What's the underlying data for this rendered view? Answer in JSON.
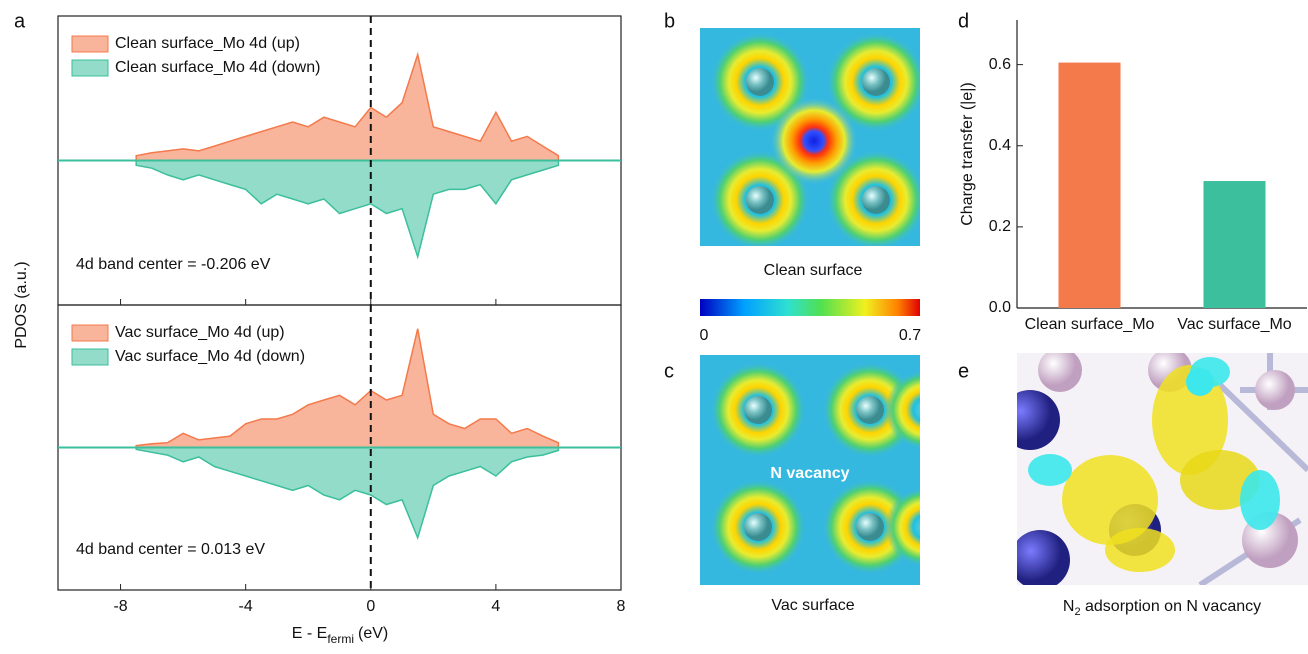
{
  "chart_data": [
    {
      "type": "area",
      "x": [
        -7.5,
        -7,
        -6.5,
        -6,
        -5.5,
        -5,
        -4.5,
        -4,
        -3.5,
        -3,
        -2.5,
        -2,
        -1.5,
        -1,
        -0.5,
        0,
        0.5,
        1,
        1.5,
        2,
        2.5,
        3,
        3.5,
        4,
        4.5,
        5,
        5.5,
        6
      ],
      "series": [
        {
          "name": "Clean surface_Mo 4d (up)",
          "color": "#f4794b",
          "values": [
            0.05,
            0.08,
            0.1,
            0.12,
            0.1,
            0.15,
            0.2,
            0.25,
            0.3,
            0.35,
            0.4,
            0.35,
            0.45,
            0.4,
            0.35,
            0.55,
            0.45,
            0.6,
            1.1,
            0.35,
            0.3,
            0.25,
            0.2,
            0.5,
            0.2,
            0.25,
            0.15,
            0.05
          ]
        },
        {
          "name": "Clean surface_Mo 4d (down)",
          "color": "#3bbf9c",
          "values": [
            -0.05,
            -0.08,
            -0.15,
            -0.2,
            -0.15,
            -0.2,
            -0.25,
            -0.3,
            -0.45,
            -0.35,
            -0.4,
            -0.45,
            -0.4,
            -0.55,
            -0.5,
            -0.45,
            -0.55,
            -0.5,
            -1.0,
            -0.35,
            -0.3,
            -0.3,
            -0.25,
            -0.45,
            -0.2,
            -0.15,
            -0.1,
            -0.05
          ]
        }
      ],
      "xlim": [
        -10,
        8
      ],
      "ylim": [
        -1.5,
        1.5
      ],
      "vline": 0,
      "annotation": "4d band center = -0.206 eV",
      "y_label": "PDOS (a.u.)"
    },
    {
      "type": "area",
      "x": [
        -7.5,
        -7,
        -6.5,
        -6,
        -5.5,
        -5,
        -4.5,
        -4,
        -3.5,
        -3,
        -2.5,
        -2,
        -1.5,
        -1,
        -0.5,
        0,
        0.5,
        1,
        1.5,
        2,
        2.5,
        3,
        3.5,
        4,
        4.5,
        5,
        5.5,
        6
      ],
      "series": [
        {
          "name": "Vac surface_Mo 4d (up)",
          "color": "#f4794b",
          "values": [
            0.02,
            0.04,
            0.05,
            0.15,
            0.08,
            0.1,
            0.12,
            0.25,
            0.3,
            0.3,
            0.35,
            0.45,
            0.5,
            0.55,
            0.45,
            0.6,
            0.5,
            0.55,
            1.25,
            0.35,
            0.25,
            0.2,
            0.3,
            0.3,
            0.15,
            0.2,
            0.12,
            0.05
          ]
        },
        {
          "name": "Vac surface_Mo 4d (down)",
          "color": "#3bbf9c",
          "values": [
            -0.02,
            -0.05,
            -0.08,
            -0.15,
            -0.1,
            -0.2,
            -0.25,
            -0.3,
            -0.35,
            -0.4,
            -0.45,
            -0.4,
            -0.5,
            -0.55,
            -0.45,
            -0.5,
            -0.6,
            -0.55,
            -0.95,
            -0.4,
            -0.3,
            -0.25,
            -0.2,
            -0.3,
            -0.15,
            -0.1,
            -0.08,
            -0.03
          ]
        }
      ],
      "xlim": [
        -10,
        8
      ],
      "ylim": [
        -1.5,
        1.5
      ],
      "vline": 0,
      "xticks": [
        -8,
        -4,
        0,
        4,
        8
      ],
      "annotation": "4d band center = 0.013 eV",
      "x_label": {
        "main": "E - E",
        "sub": "fermi",
        "unit": "(eV)"
      }
    },
    {
      "type": "bar",
      "categories": [
        "Clean surface_Mo",
        "Vac surface_Mo"
      ],
      "values": [
        0.605,
        0.313
      ],
      "colors": [
        "#f4794b",
        "#3bbf9c"
      ],
      "ylim": [
        0,
        0.71
      ],
      "yticks": [
        {
          "value": 0,
          "label": "0.0"
        },
        {
          "value": 0.2,
          "label": "0.2"
        },
        {
          "value": 0.4,
          "label": "0.4"
        },
        {
          "value": 0.6,
          "label": "0.6"
        }
      ],
      "y_label": "Charge transfer (|e|)"
    }
  ],
  "panel_labels": [
    "a",
    "b",
    "c",
    "d",
    "e"
  ],
  "images": [
    {
      "caption": "Clean surface"
    },
    {
      "caption": "Vac surface",
      "overlay": "N vacancy"
    },
    {
      "caption": {
        "main": "N",
        "sub": "2",
        "rest": " adsorption on N vacancy"
      }
    }
  ],
  "colorbar": {
    "min": 0,
    "max": 0.7
  }
}
